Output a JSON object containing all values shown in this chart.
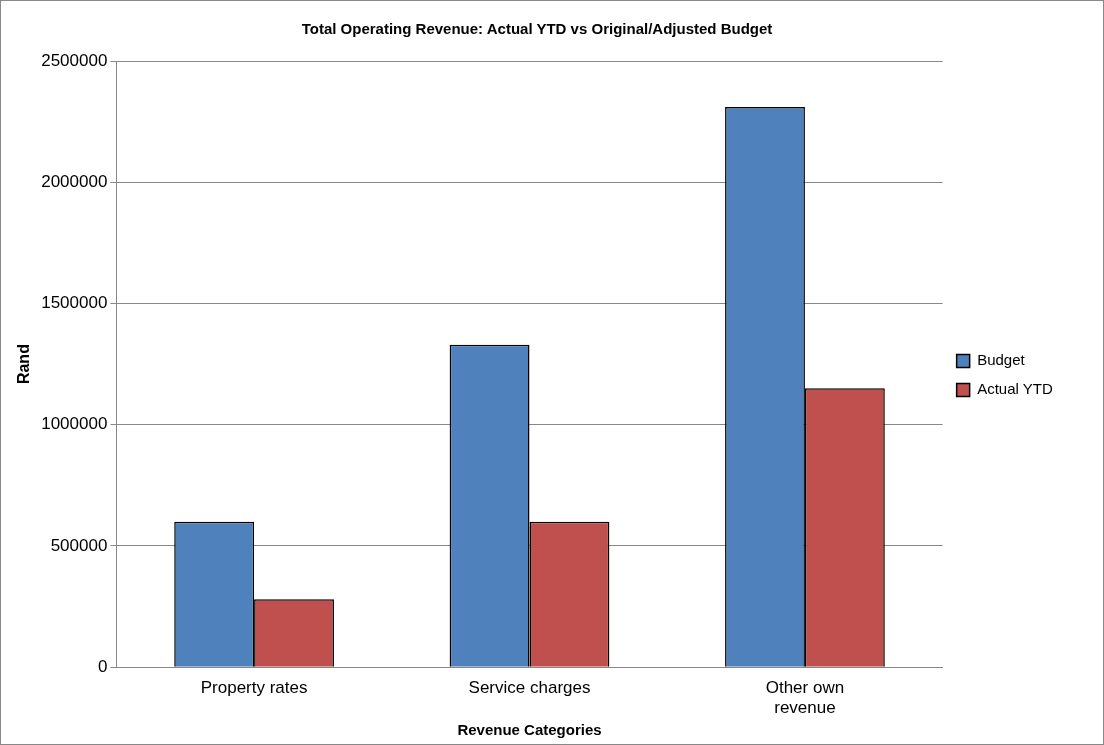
{
  "chart_data": {
    "type": "bar",
    "title": "Total Operating Revenue: Actual YTD vs Original/Adjusted Budget",
    "xlabel": "Revenue Categories",
    "ylabel": "Rand",
    "categories": [
      "Property rates",
      "Service charges",
      "Other own revenue"
    ],
    "series": [
      {
        "name": "Budget",
        "color": "#4f81bd",
        "values": [
          600000,
          1330000,
          2310000
        ]
      },
      {
        "name": "Actual YTD",
        "color": "#c0504d",
        "values": [
          280000,
          600000,
          1150000
        ]
      }
    ],
    "ylim": [
      0,
      2500000
    ],
    "yticks": [
      0,
      500000,
      1000000,
      1500000,
      2000000,
      2500000
    ],
    "grid": "y",
    "legend": "right"
  }
}
